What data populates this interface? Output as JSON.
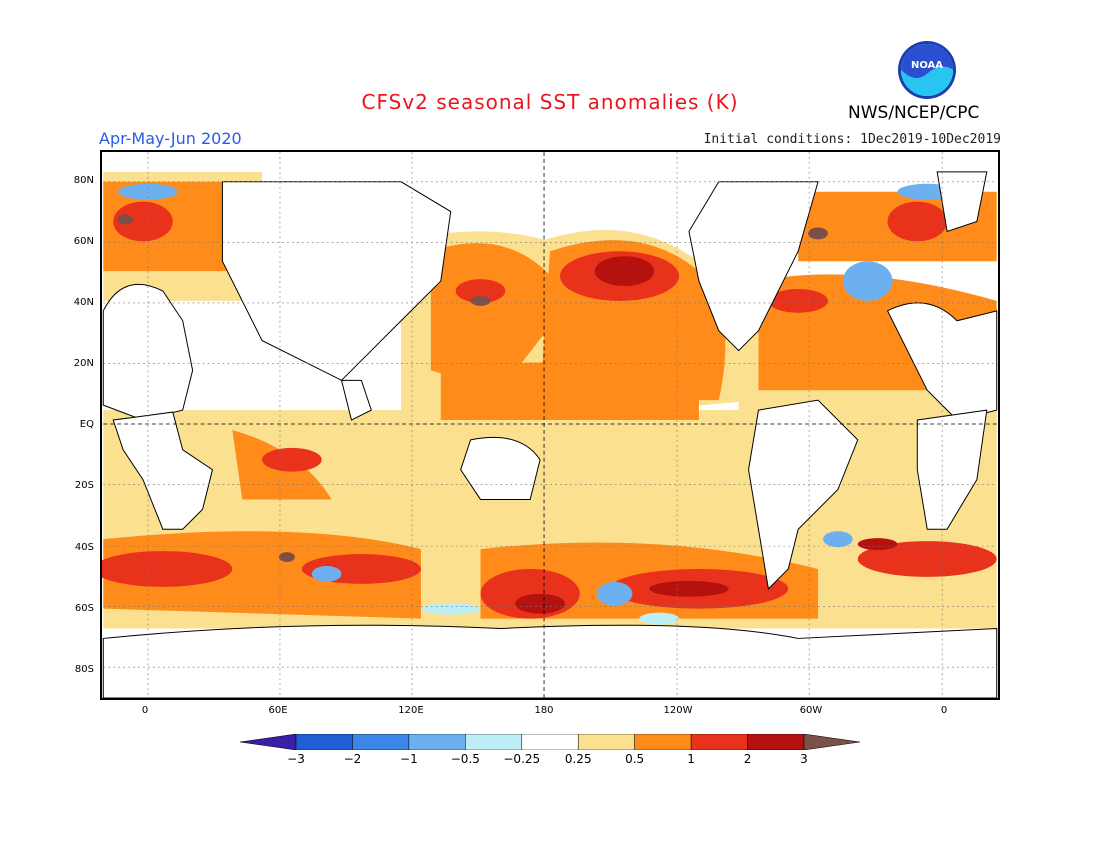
{
  "title": "CFSv2 seasonal SST anomalies (K)",
  "period": "Apr-May-Jun 2020",
  "initial_conditions": "Initial conditions: 1Dec2019-10Dec2019",
  "agency": "NWS/NCEP/CPC",
  "logo_text": "NOAA",
  "lat_labels": [
    "80N",
    "60N",
    "40N",
    "20N",
    "EQ",
    "20S",
    "40S",
    "60S",
    "80S"
  ],
  "lon_labels": [
    "0",
    "60E",
    "120E",
    "180",
    "120W",
    "60W",
    "0"
  ],
  "colorbar": {
    "levels": [
      "-3",
      "-2",
      "-1",
      "-0.5",
      "-0.25",
      "0.25",
      "0.5",
      "1",
      "2",
      "3"
    ],
    "colors": [
      "#3a1ea8",
      "#1f5fd6",
      "#3b86e8",
      "#6cb0f0",
      "#bdeef5",
      "#ffffff",
      "#fbe08f",
      "#ff8c1a",
      "#e8321c",
      "#b4110f",
      "#7a5048"
    ]
  },
  "palette": {
    "warm_light": "#fbe08f",
    "warm": "#ff8c1a",
    "hot": "#e8321c",
    "very_hot": "#b4110f",
    "extreme": "#7a5048",
    "cool_light": "#bdeef5",
    "cool": "#6cb0f0",
    "cold": "#3b86e8"
  }
}
